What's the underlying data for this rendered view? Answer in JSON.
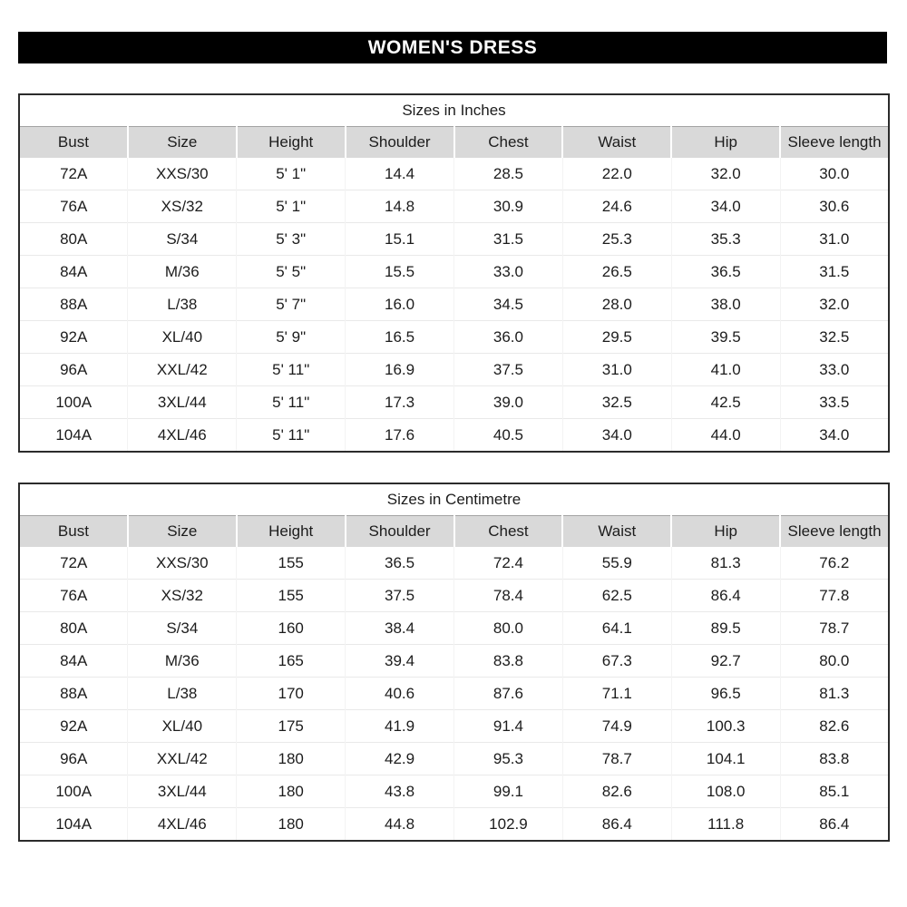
{
  "banner": {
    "title": "WOMEN'S DRESS",
    "bg_color": "#000000",
    "text_color": "#ffffff"
  },
  "colors": {
    "header_row_bg": "#d9d9d9",
    "table_border": "#2b2b2b",
    "text": "#1c1c1c"
  },
  "tables": [
    {
      "title": "Sizes in Inches",
      "columns": [
        "Bust",
        "Size",
        "Height",
        "Shoulder",
        "Chest",
        "Waist",
        "Hip",
        "Sleeve length"
      ],
      "rows": [
        [
          "72A",
          "XXS/30",
          "5' 1\"",
          "14.4",
          "28.5",
          "22.0",
          "32.0",
          "30.0"
        ],
        [
          "76A",
          "XS/32",
          "5' 1\"",
          "14.8",
          "30.9",
          "24.6",
          "34.0",
          "30.6"
        ],
        [
          "80A",
          "S/34",
          "5' 3\"",
          "15.1",
          "31.5",
          "25.3",
          "35.3",
          "31.0"
        ],
        [
          "84A",
          "M/36",
          "5' 5\"",
          "15.5",
          "33.0",
          "26.5",
          "36.5",
          "31.5"
        ],
        [
          "88A",
          "L/38",
          "5' 7\"",
          "16.0",
          "34.5",
          "28.0",
          "38.0",
          "32.0"
        ],
        [
          "92A",
          "XL/40",
          "5' 9\"",
          "16.5",
          "36.0",
          "29.5",
          "39.5",
          "32.5"
        ],
        [
          "96A",
          "XXL/42",
          "5' 11\"",
          "16.9",
          "37.5",
          "31.0",
          "41.0",
          "33.0"
        ],
        [
          "100A",
          "3XL/44",
          "5' 11\"",
          "17.3",
          "39.0",
          "32.5",
          "42.5",
          "33.5"
        ],
        [
          "104A",
          "4XL/46",
          "5' 11\"",
          "17.6",
          "40.5",
          "34.0",
          "44.0",
          "34.0"
        ]
      ]
    },
    {
      "title": "Sizes in Centimetre",
      "columns": [
        "Bust",
        "Size",
        "Height",
        "Shoulder",
        "Chest",
        "Waist",
        "Hip",
        "Sleeve length"
      ],
      "rows": [
        [
          "72A",
          "XXS/30",
          "155",
          "36.5",
          "72.4",
          "55.9",
          "81.3",
          "76.2"
        ],
        [
          "76A",
          "XS/32",
          "155",
          "37.5",
          "78.4",
          "62.5",
          "86.4",
          "77.8"
        ],
        [
          "80A",
          "S/34",
          "160",
          "38.4",
          "80.0",
          "64.1",
          "89.5",
          "78.7"
        ],
        [
          "84A",
          "M/36",
          "165",
          "39.4",
          "83.8",
          "67.3",
          "92.7",
          "80.0"
        ],
        [
          "88A",
          "L/38",
          "170",
          "40.6",
          "87.6",
          "71.1",
          "96.5",
          "81.3"
        ],
        [
          "92A",
          "XL/40",
          "175",
          "41.9",
          "91.4",
          "74.9",
          "100.3",
          "82.6"
        ],
        [
          "96A",
          "XXL/42",
          "180",
          "42.9",
          "95.3",
          "78.7",
          "104.1",
          "83.8"
        ],
        [
          "100A",
          "3XL/44",
          "180",
          "43.8",
          "99.1",
          "82.6",
          "108.0",
          "85.1"
        ],
        [
          "104A",
          "4XL/46",
          "180",
          "44.8",
          "102.9",
          "86.4",
          "111.8",
          "86.4"
        ]
      ]
    }
  ]
}
